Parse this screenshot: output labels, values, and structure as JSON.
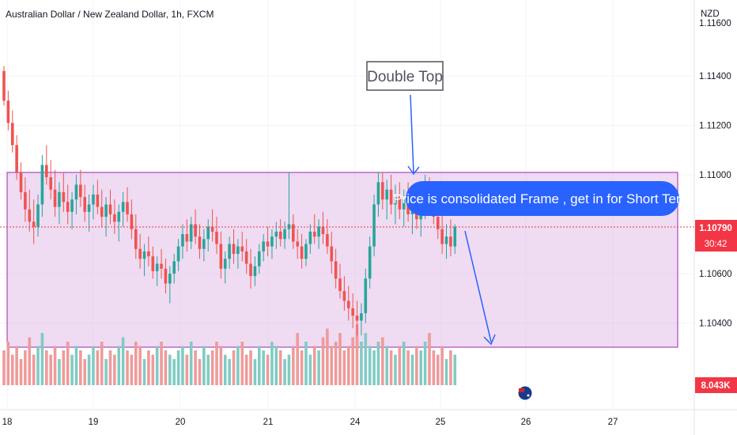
{
  "chart_data": {
    "type": "candlestick",
    "title": "Australian Dollar / New Zealand Dollar, 1h, FXCM",
    "currency": "NZD",
    "y_ticks": [
      "1.11400",
      "1.11200",
      "1.11000",
      "1.10600",
      "1.10400"
    ],
    "x_ticks": [
      "18",
      "19",
      "20",
      "21",
      "24",
      "25",
      "26",
      "27"
    ],
    "last_price": "1.10790",
    "countdown": "30:42",
    "volume_label": "8.043K",
    "annotations": {
      "double_top": "Double Top",
      "callout": "Price is consolidated Frame , get in for Short Term"
    },
    "consolidation_range": [
      1.1033,
      1.1101
    ],
    "colors": {
      "up": "#26a69a",
      "down": "#ef5350",
      "range_fill": "#e1bee7",
      "range_border": "#9c27b0",
      "callout": "#2962ff",
      "price_tag": "#f23645"
    },
    "candles": [
      [
        1.1142,
        1.1144,
        1.1128,
        1.113
      ],
      [
        1.113,
        1.1134,
        1.1118,
        1.1121
      ],
      [
        1.1121,
        1.1126,
        1.1109,
        1.1112
      ],
      [
        1.1112,
        1.1116,
        1.1098,
        1.1101
      ],
      [
        1.1101,
        1.1105,
        1.109,
        1.1093
      ],
      [
        1.1093,
        1.1099,
        1.1081,
        1.1086
      ],
      [
        1.1086,
        1.1094,
        1.1077,
        1.1081
      ],
      [
        1.1081,
        1.109,
        1.1072,
        1.1079
      ],
      [
        1.1079,
        1.1092,
        1.1075,
        1.1088
      ],
      [
        1.1088,
        1.1108,
        1.1083,
        1.1104
      ],
      [
        1.1104,
        1.1112,
        1.1096,
        1.1099
      ],
      [
        1.1099,
        1.1106,
        1.109,
        1.1094
      ],
      [
        1.1094,
        1.1102,
        1.1083,
        1.1087
      ],
      [
        1.1087,
        1.1097,
        1.108,
        1.1093
      ],
      [
        1.1093,
        1.1101,
        1.1085,
        1.1089
      ],
      [
        1.1089,
        1.1096,
        1.108,
        1.1085
      ],
      [
        1.1085,
        1.1093,
        1.1078,
        1.109
      ],
      [
        1.109,
        1.11,
        1.1084,
        1.1096
      ],
      [
        1.1096,
        1.1102,
        1.1087,
        1.1091
      ],
      [
        1.1091,
        1.1096,
        1.1081,
        1.1085
      ],
      [
        1.1085,
        1.1092,
        1.1077,
        1.1088
      ],
      [
        1.1088,
        1.1096,
        1.1082,
        1.1092
      ],
      [
        1.1092,
        1.1098,
        1.1084,
        1.1087
      ],
      [
        1.1087,
        1.1094,
        1.1079,
        1.1083
      ],
      [
        1.1083,
        1.1091,
        1.1075,
        1.1088
      ],
      [
        1.1088,
        1.1094,
        1.108,
        1.1084
      ],
      [
        1.1084,
        1.109,
        1.1076,
        1.1081
      ],
      [
        1.1081,
        1.1088,
        1.1073,
        1.1085
      ],
      [
        1.1085,
        1.1093,
        1.1079,
        1.1089
      ],
      [
        1.1089,
        1.1095,
        1.1081,
        1.1084
      ],
      [
        1.1084,
        1.109,
        1.1074,
        1.1078
      ],
      [
        1.1078,
        1.1084,
        1.1066,
        1.107
      ],
      [
        1.107,
        1.1076,
        1.1062,
        1.1066
      ],
      [
        1.1066,
        1.1072,
        1.1059,
        1.1069
      ],
      [
        1.1069,
        1.1075,
        1.1063,
        1.1067
      ],
      [
        1.1067,
        1.1071,
        1.1058,
        1.1061
      ],
      [
        1.1061,
        1.1067,
        1.1055,
        1.1064
      ],
      [
        1.1064,
        1.107,
        1.1058,
        1.1062
      ],
      [
        1.1062,
        1.1066,
        1.1052,
        1.1056
      ],
      [
        1.1056,
        1.1063,
        1.1048,
        1.106
      ],
      [
        1.106,
        1.1068,
        1.1056,
        1.1065
      ],
      [
        1.1065,
        1.1074,
        1.1061,
        1.1071
      ],
      [
        1.1071,
        1.108,
        1.1066,
        1.1076
      ],
      [
        1.1076,
        1.1082,
        1.1069,
        1.1073
      ],
      [
        1.1073,
        1.1083,
        1.107,
        1.108
      ],
      [
        1.108,
        1.1086,
        1.1072,
        1.1075
      ],
      [
        1.1075,
        1.108,
        1.1066,
        1.107
      ],
      [
        1.107,
        1.1078,
        1.1065,
        1.1074
      ],
      [
        1.1074,
        1.1082,
        1.1069,
        1.1079
      ],
      [
        1.1079,
        1.1086,
        1.1073,
        1.1077
      ],
      [
        1.1077,
        1.1083,
        1.1068,
        1.1072
      ],
      [
        1.1072,
        1.1077,
        1.1058,
        1.1062
      ],
      [
        1.1062,
        1.1069,
        1.1056,
        1.1066
      ],
      [
        1.1066,
        1.1075,
        1.1062,
        1.1072
      ],
      [
        1.1072,
        1.1078,
        1.1064,
        1.1068
      ],
      [
        1.1068,
        1.1074,
        1.1062,
        1.1071
      ],
      [
        1.1071,
        1.1077,
        1.1065,
        1.1069
      ],
      [
        1.1069,
        1.1074,
        1.106,
        1.1064
      ],
      [
        1.1064,
        1.107,
        1.1054,
        1.1059
      ],
      [
        1.1059,
        1.1067,
        1.1055,
        1.1063
      ],
      [
        1.1063,
        1.1072,
        1.106,
        1.1069
      ],
      [
        1.1069,
        1.1076,
        1.1065,
        1.1073
      ],
      [
        1.1073,
        1.1079,
        1.1067,
        1.1071
      ],
      [
        1.1071,
        1.1078,
        1.1066,
        1.1075
      ],
      [
        1.1075,
        1.1081,
        1.107,
        1.1077
      ],
      [
        1.1077,
        1.1082,
        1.1071,
        1.1074
      ],
      [
        1.1074,
        1.1081,
        1.107,
        1.1078
      ],
      [
        1.1078,
        1.1101,
        1.1074,
        1.108
      ],
      [
        1.108,
        1.1084,
        1.107,
        1.1073
      ],
      [
        1.1073,
        1.1078,
        1.1066,
        1.1071
      ],
      [
        1.1071,
        1.1076,
        1.1062,
        1.1066
      ],
      [
        1.1066,
        1.1074,
        1.1063,
        1.1072
      ],
      [
        1.1072,
        1.108,
        1.1068,
        1.1077
      ],
      [
        1.1077,
        1.1084,
        1.1072,
        1.1075
      ],
      [
        1.1075,
        1.1082,
        1.107,
        1.1079
      ],
      [
        1.1079,
        1.1085,
        1.1072,
        1.1076
      ],
      [
        1.1076,
        1.1082,
        1.1068,
        1.1071
      ],
      [
        1.1071,
        1.1077,
        1.106,
        1.1065
      ],
      [
        1.1065,
        1.107,
        1.1054,
        1.1058
      ],
      [
        1.1058,
        1.1064,
        1.105,
        1.1053
      ],
      [
        1.1053,
        1.1059,
        1.1045,
        1.1049
      ],
      [
        1.1049,
        1.1055,
        1.1041,
        1.1046
      ],
      [
        1.1046,
        1.1052,
        1.1038,
        1.1043
      ],
      [
        1.1043,
        1.1049,
        1.1035,
        1.1041
      ],
      [
        1.1041,
        1.1048,
        1.1035,
        1.1044
      ],
      [
        1.1044,
        1.1062,
        1.104,
        1.1058
      ],
      [
        1.1058,
        1.1075,
        1.1054,
        1.1071
      ],
      [
        1.1071,
        1.1092,
        1.1067,
        1.1088
      ],
      [
        1.1088,
        1.1101,
        1.1083,
        1.1097
      ],
      [
        1.1097,
        1.1101,
        1.1086,
        1.109
      ],
      [
        1.109,
        1.1098,
        1.1082,
        1.1094
      ],
      [
        1.1094,
        1.11,
        1.1084,
        1.1088
      ],
      [
        1.1088,
        1.1096,
        1.108,
        1.1091
      ],
      [
        1.1091,
        1.1097,
        1.1082,
        1.1086
      ],
      [
        1.1086,
        1.1094,
        1.1079,
        1.109
      ],
      [
        1.109,
        1.1097,
        1.1081,
        1.1084
      ],
      [
        1.1084,
        1.1092,
        1.1076,
        1.1088
      ],
      [
        1.1088,
        1.1094,
        1.1078,
        1.1082
      ],
      [
        1.1082,
        1.109,
        1.1075,
        1.1086
      ],
      [
        1.1086,
        1.11,
        1.1082,
        1.1095
      ],
      [
        1.1095,
        1.1099,
        1.1085,
        1.1089
      ],
      [
        1.1089,
        1.1096,
        1.108,
        1.1083
      ],
      [
        1.1083,
        1.1089,
        1.1074,
        1.1078
      ],
      [
        1.1078,
        1.1084,
        1.1068,
        1.1072
      ],
      [
        1.1072,
        1.108,
        1.1066,
        1.1075
      ],
      [
        1.1075,
        1.1082,
        1.1067,
        1.1071
      ],
      [
        1.1071,
        1.108,
        1.1068,
        1.1079
      ]
    ],
    "volume": [
      8,
      10,
      7,
      9,
      6,
      8,
      11,
      7,
      9,
      12,
      8,
      7,
      9,
      6,
      8,
      10,
      7,
      9,
      8,
      6,
      7,
      9,
      8,
      10,
      6,
      8,
      7,
      9,
      11,
      8,
      7,
      10,
      9,
      6,
      8,
      7,
      9,
      10,
      8,
      7,
      6,
      8,
      9,
      7,
      10,
      8,
      6,
      9,
      7,
      8,
      10,
      9,
      7,
      6,
      8,
      9,
      10,
      7,
      8,
      6,
      9,
      8,
      7,
      10,
      9,
      8,
      6,
      7,
      9,
      12,
      8,
      10,
      7,
      9,
      8,
      11,
      13,
      9,
      10,
      12,
      8,
      9,
      11,
      14,
      10,
      12,
      9,
      8,
      10,
      11,
      9,
      8,
      7,
      9,
      10,
      8,
      7,
      9,
      8,
      10,
      12,
      8,
      7,
      9,
      6,
      8,
      7
    ]
  }
}
